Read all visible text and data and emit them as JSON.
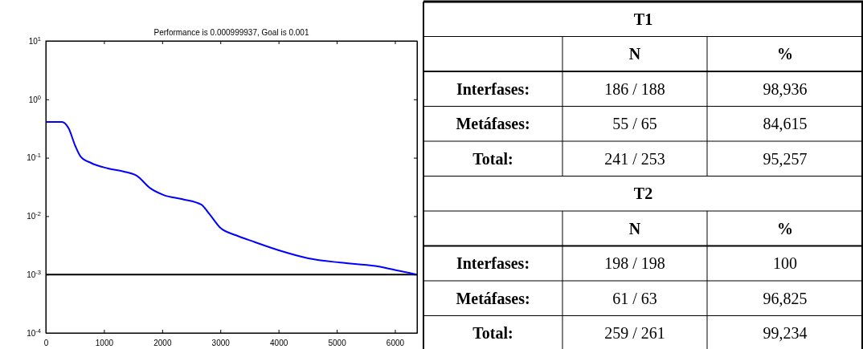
{
  "chart_data": [
    {
      "type": "line",
      "title": "Performance is 0.000999937, Goal is 0.001",
      "log": "y",
      "xlim": [
        0,
        6380
      ],
      "xticks": [
        0,
        1000,
        2000,
        3000,
        4000,
        5000,
        6000
      ],
      "ylim": [
        0.0001,
        10
      ],
      "yticks": [
        {
          "value": 10,
          "label": "10$^{1}$"
        },
        {
          "value": 1,
          "label": "10$^{0}$"
        },
        {
          "value": 0.1,
          "label": "10$^{-1}$"
        },
        {
          "value": 0.01,
          "label": "10$^{-2}$"
        },
        {
          "value": 0.001,
          "label": "10$^{-3}$"
        },
        {
          "value": 0.0001,
          "label": "10$^{-4}$"
        }
      ],
      "ref_lines": [
        {
          "axis": "y",
          "value": 0.001,
          "color": "#000000"
        }
      ],
      "series": [
        {
          "color": "#0000ff",
          "x": [
            0,
            276,
            391,
            506,
            598,
            782,
            1059,
            1335,
            1565,
            1796,
            2026,
            2348,
            2670,
            2808,
            2993,
            3269,
            3591,
            4006,
            4512,
            5064,
            5663,
            6000,
            6380
          ],
          "values": [
            0.41,
            0.41,
            0.32,
            0.16,
            0.105,
            0.081,
            0.066,
            0.058,
            0.049,
            0.03,
            0.023,
            0.0195,
            0.0158,
            0.011,
            0.0064,
            0.0047,
            0.0036,
            0.0026,
            0.0019,
            0.0016,
            0.0014,
            0.0012,
            0.001
          ]
        }
      ]
    },
    {
      "type": "other",
      "title": "T1",
      "categories": [
        "N",
        "%"
      ],
      "y_categories": [
        "Interfases:",
        "Metáfases:",
        "Total:"
      ],
      "cell_labels": [
        [
          "186 / 188",
          "98,936"
        ],
        [
          "55 / 65",
          "84,615"
        ],
        [
          "241 / 253",
          "95,257"
        ]
      ]
    },
    {
      "type": "other",
      "title": "T2",
      "categories": [
        "N",
        "%"
      ],
      "y_categories": [
        "Interfases:",
        "Metáfases:",
        "Total:"
      ],
      "cell_labels": [
        [
          "198 / 198",
          "100"
        ],
        [
          "61 / 63",
          "96,825"
        ],
        [
          "259 / 261",
          "99,234"
        ]
      ]
    }
  ]
}
